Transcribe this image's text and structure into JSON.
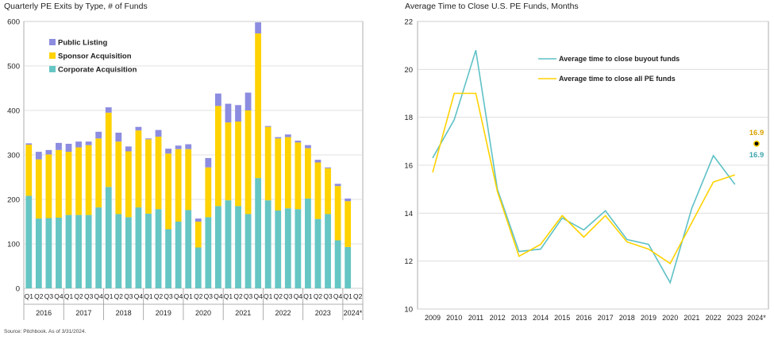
{
  "source_note": "Source: Pitchbook. As of 3/31/2024.",
  "colors": {
    "public_listing": "#8c8ce0",
    "sponsor_acquisition": "#ffd200",
    "corporate_acquisition": "#65c6c4",
    "buyout_line": "#5ec1c6",
    "all_pe_line": "#ffd200",
    "label_buyout": "#3ea6ae",
    "label_all_pe": "#d9a200",
    "grid": "#d9d9d9"
  },
  "chart_data": [
    {
      "type": "bar",
      "stacked": true,
      "title": "Quarterly PE Exits by Type, # of Funds",
      "xlabel": "",
      "ylabel": "",
      "ylim": [
        0,
        600
      ],
      "yticks": [
        "0",
        "100",
        "200",
        "300",
        "400",
        "500",
        "600"
      ],
      "grid": true,
      "legend_position": "top-left",
      "categories": [
        "Q1",
        "Q2",
        "Q3",
        "Q4",
        "Q1",
        "Q2",
        "Q3",
        "Q4",
        "Q1",
        "Q2",
        "Q3",
        "Q4",
        "Q1",
        "Q2",
        "Q3",
        "Q4",
        "Q1",
        "Q2",
        "Q3",
        "Q4",
        "Q1",
        "Q2",
        "Q3",
        "Q4",
        "Q1",
        "Q2",
        "Q3",
        "Q4",
        "Q1",
        "Q2",
        "Q3",
        "Q4",
        "Q1",
        "Q2"
      ],
      "year_groups": [
        {
          "label": "2016",
          "count": 4
        },
        {
          "label": "2017",
          "count": 4
        },
        {
          "label": "2018",
          "count": 4
        },
        {
          "label": "2019",
          "count": 4
        },
        {
          "label": "2020",
          "count": 4
        },
        {
          "label": "2021",
          "count": 4
        },
        {
          "label": "2022",
          "count": 4
        },
        {
          "label": "2023",
          "count": 4
        },
        {
          "label": "2024*",
          "count": 2
        }
      ],
      "series": [
        {
          "name": "Corporate Acquisition",
          "values": [
            208,
            157,
            158,
            159,
            165,
            165,
            165,
            182,
            228,
            167,
            160,
            182,
            168,
            178,
            133,
            150,
            176,
            92,
            160,
            185,
            198,
            185,
            167,
            248,
            198,
            175,
            180,
            178,
            202,
            156,
            167,
            108,
            93,
            0
          ]
        },
        {
          "name": "Sponsor Acquisition",
          "values": [
            115,
            133,
            143,
            152,
            142,
            152,
            157,
            155,
            167,
            163,
            148,
            173,
            167,
            163,
            170,
            163,
            137,
            58,
            112,
            225,
            175,
            190,
            233,
            325,
            165,
            162,
            160,
            150,
            113,
            127,
            103,
            122,
            103,
            0
          ]
        },
        {
          "name": "Public Listing",
          "values": [
            3,
            17,
            10,
            16,
            18,
            13,
            8,
            15,
            12,
            20,
            11,
            8,
            2,
            15,
            11,
            8,
            11,
            7,
            21,
            28,
            42,
            37,
            40,
            25,
            2,
            3,
            6,
            4,
            7,
            6,
            2,
            5,
            6,
            0
          ]
        }
      ]
    },
    {
      "type": "line",
      "title": "Average Time to Close U.S. PE Funds, Months",
      "xlabel": "",
      "ylabel": "",
      "ylim": [
        10,
        22
      ],
      "yticks": [
        "10",
        "12",
        "14",
        "16",
        "18",
        "20",
        "22"
      ],
      "grid": true,
      "legend_position": "top-center",
      "x": [
        "2009",
        "2010",
        "2011",
        "2012",
        "2013",
        "2014",
        "2015",
        "2016",
        "2017",
        "2018",
        "2019",
        "2020",
        "2021",
        "2022",
        "2023",
        "2024*"
      ],
      "series": [
        {
          "name": "Average time to close buyout funds",
          "values": [
            16.3,
            17.9,
            20.8,
            15.0,
            12.4,
            12.5,
            13.8,
            13.3,
            14.1,
            12.9,
            12.7,
            11.1,
            14.2,
            16.4,
            15.2,
            null
          ]
        },
        {
          "name": "Average time to close all PE funds",
          "values": [
            15.7,
            19.0,
            19.0,
            14.9,
            12.2,
            12.7,
            13.9,
            13.0,
            13.9,
            12.8,
            12.5,
            11.9,
            13.6,
            15.3,
            15.6,
            null
          ]
        }
      ],
      "annotations": [
        {
          "text": "16.9",
          "series": "Average time to close all PE funds",
          "x": "2024*",
          "y": 16.9
        },
        {
          "text": "16.9",
          "series": "Average time to close buyout funds",
          "x": "2024*",
          "y": 16.9
        }
      ]
    }
  ]
}
